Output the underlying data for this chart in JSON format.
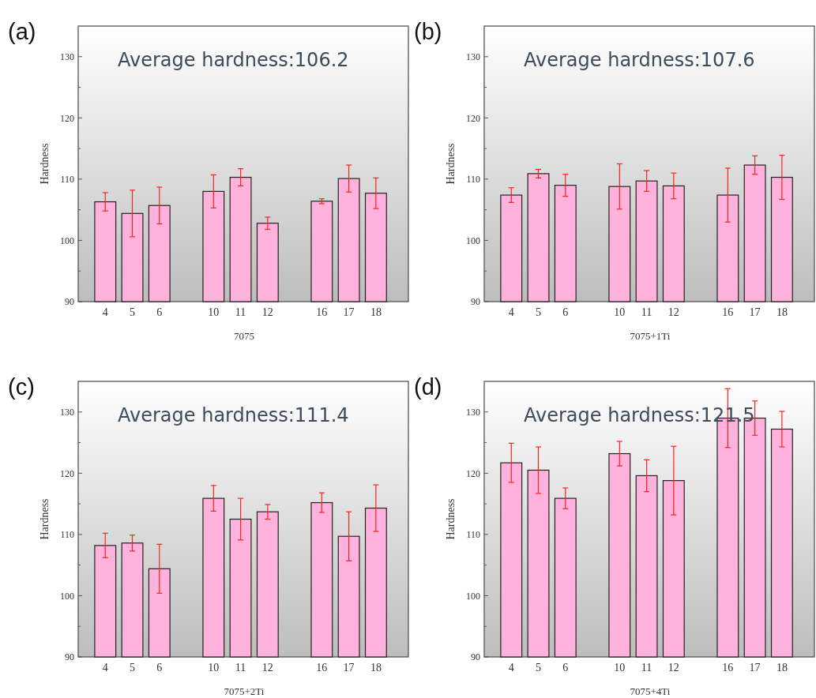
{
  "chart_data": [
    {
      "type": "bar",
      "title": "(a)",
      "annotations": [
        "Average hardness:106.2"
      ],
      "xlabel": "7075",
      "ylabel": "Hardness",
      "categories": [
        "4",
        "5",
        "6",
        null,
        "10",
        "11",
        "12",
        null,
        "16",
        "17",
        "18"
      ],
      "values": [
        106.3,
        104.4,
        105.7,
        null,
        108.0,
        110.3,
        102.8,
        null,
        106.4,
        110.1,
        107.7
      ],
      "errors": [
        1.5,
        3.8,
        3.0,
        null,
        2.7,
        1.4,
        1.0,
        null,
        0.4,
        2.2,
        2.5
      ],
      "color": "#ffb3dc",
      "ylim": [
        90,
        135
      ],
      "yticks": [
        90,
        {
          "value": 95,
          "label": null
        },
        100,
        {
          "value": 105,
          "label": null
        },
        110,
        {
          "value": 115,
          "label": null
        },
        120,
        {
          "value": 125,
          "label": null
        },
        130
      ]
    },
    {
      "type": "bar",
      "title": "(b)",
      "annotations": [
        "Average hardness:107.6"
      ],
      "xlabel": "7075+1Ti",
      "ylabel": "Hardness",
      "categories": [
        "4",
        "5",
        "6",
        null,
        "10",
        "11",
        "12",
        null,
        "16",
        "17",
        "18"
      ],
      "values": [
        107.4,
        110.9,
        109.0,
        null,
        108.8,
        109.7,
        108.9,
        null,
        107.4,
        112.3,
        110.3
      ],
      "errors": [
        1.2,
        0.7,
        1.8,
        null,
        3.7,
        1.7,
        2.1,
        null,
        4.4,
        1.5,
        3.6
      ],
      "color": "#ffb3dc",
      "ylim": [
        90,
        135
      ],
      "yticks": [
        90,
        {
          "value": 95,
          "label": null
        },
        100,
        {
          "value": 105,
          "label": null
        },
        110,
        {
          "value": 115,
          "label": null
        },
        120,
        {
          "value": 125,
          "label": null
        },
        130
      ]
    },
    {
      "type": "bar",
      "title": "(c)",
      "annotations": [
        "Average hardness:111.4"
      ],
      "xlabel": "7075+2Ti",
      "ylabel": "Hardness",
      "categories": [
        "4",
        "5",
        "6",
        null,
        "10",
        "11",
        "12",
        null,
        "16",
        "17",
        "18"
      ],
      "values": [
        108.2,
        108.6,
        104.4,
        null,
        115.9,
        112.5,
        113.7,
        null,
        115.2,
        109.7,
        114.3
      ],
      "errors": [
        2.0,
        1.3,
        4.0,
        null,
        2.1,
        3.4,
        1.2,
        null,
        1.6,
        4.0,
        3.8
      ],
      "color": "#ffb3dc",
      "ylim": [
        90,
        135
      ],
      "yticks": [
        90,
        {
          "value": 95,
          "label": null
        },
        100,
        {
          "value": 105,
          "label": null
        },
        110,
        {
          "value": 115,
          "label": null
        },
        120,
        {
          "value": 125,
          "label": null
        },
        130
      ]
    },
    {
      "type": "bar",
      "title": "(d)",
      "annotations": [
        "Average hardness:121.5"
      ],
      "xlabel": "7075+4Ti",
      "ylabel": "Hardness",
      "categories": [
        "4",
        "5",
        "6",
        null,
        "10",
        "11",
        "12",
        null,
        "16",
        "17",
        "18"
      ],
      "values": [
        121.7,
        120.5,
        115.9,
        null,
        123.2,
        119.6,
        118.8,
        null,
        129.0,
        129.0,
        127.2
      ],
      "errors": [
        3.2,
        3.8,
        1.7,
        null,
        2.0,
        2.6,
        5.6,
        null,
        4.8,
        2.8,
        2.9
      ],
      "color": "#ffb3dc",
      "ylim": [
        90,
        135
      ],
      "yticks": [
        90,
        {
          "value": 95,
          "label": null
        },
        100,
        {
          "value": 105,
          "label": null
        },
        110,
        {
          "value": 115,
          "label": null
        },
        120,
        {
          "value": 125,
          "label": null
        },
        130
      ]
    }
  ]
}
